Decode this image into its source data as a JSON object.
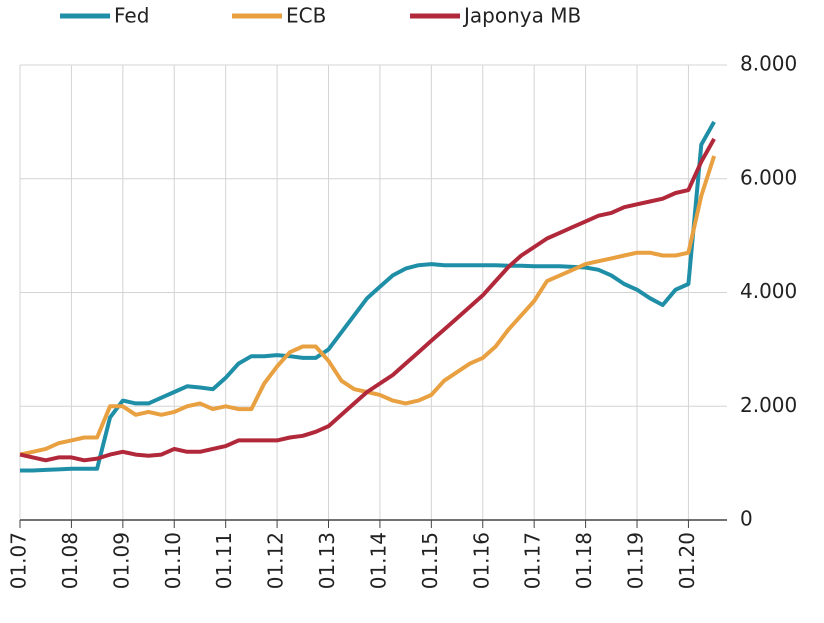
{
  "chart_data": {
    "type": "line",
    "x": [
      "2007-01",
      "2007-04",
      "2007-07",
      "2007-10",
      "2008-01",
      "2008-04",
      "2008-07",
      "2008-10",
      "2009-01",
      "2009-04",
      "2009-07",
      "2009-10",
      "2010-01",
      "2010-04",
      "2010-07",
      "2010-10",
      "2011-01",
      "2011-04",
      "2011-07",
      "2011-10",
      "2012-01",
      "2012-04",
      "2012-07",
      "2012-10",
      "2013-01",
      "2013-04",
      "2013-07",
      "2013-10",
      "2014-01",
      "2014-04",
      "2014-07",
      "2014-10",
      "2015-01",
      "2015-04",
      "2015-07",
      "2015-10",
      "2016-01",
      "2016-04",
      "2016-07",
      "2016-10",
      "2017-01",
      "2017-04",
      "2017-07",
      "2017-10",
      "2018-01",
      "2018-04",
      "2018-07",
      "2018-10",
      "2019-01",
      "2019-04",
      "2019-07",
      "2019-10",
      "2020-01",
      "2020-04",
      "2020-07"
    ],
    "series": [
      {
        "name": "Fed",
        "color": "#1f8fa8",
        "values": [
          870,
          870,
          880,
          890,
          900,
          900,
          900,
          1800,
          2100,
          2050,
          2050,
          2150,
          2250,
          2350,
          2330,
          2300,
          2500,
          2750,
          2880,
          2880,
          2900,
          2880,
          2850,
          2850,
          3000,
          3300,
          3600,
          3900,
          4100,
          4300,
          4420,
          4480,
          4500,
          4480,
          4480,
          4480,
          4480,
          4480,
          4470,
          4470,
          4460,
          4460,
          4460,
          4450,
          4440,
          4400,
          4300,
          4150,
          4050,
          3900,
          3780,
          4050,
          4150,
          6600,
          7000
        ]
      },
      {
        "name": "ECB",
        "color": "#e8a040",
        "values": [
          1150,
          1200,
          1250,
          1350,
          1400,
          1450,
          1450,
          2000,
          2000,
          1850,
          1900,
          1850,
          1900,
          2000,
          2050,
          1950,
          2000,
          1950,
          1950,
          2400,
          2700,
          2950,
          3050,
          3050,
          2800,
          2450,
          2300,
          2250,
          2200,
          2100,
          2050,
          2100,
          2200,
          2450,
          2600,
          2750,
          2850,
          3050,
          3350,
          3600,
          3850,
          4200,
          4300,
          4400,
          4500,
          4550,
          4600,
          4650,
          4700,
          4700,
          4650,
          4650,
          4700,
          5700,
          6400
        ]
      },
      {
        "name": "Japonya MB",
        "color": "#b0283a",
        "values": [
          1150,
          1100,
          1050,
          1100,
          1100,
          1050,
          1080,
          1150,
          1200,
          1150,
          1130,
          1150,
          1250,
          1200,
          1200,
          1250,
          1300,
          1400,
          1400,
          1400,
          1400,
          1450,
          1480,
          1550,
          1650,
          1850,
          2050,
          2250,
          2400,
          2550,
          2750,
          2950,
          3150,
          3350,
          3550,
          3750,
          3950,
          4200,
          4450,
          4650,
          4800,
          4950,
          5050,
          5150,
          5250,
          5350,
          5400,
          5500,
          5550,
          5600,
          5650,
          5750,
          5800,
          6300,
          6700
        ]
      }
    ],
    "xlim": [
      "2007-01",
      "2020-10"
    ],
    "xticks": [
      {
        "value": "2007-01",
        "label": "01.07"
      },
      {
        "value": "2008-01",
        "label": "01.08"
      },
      {
        "value": "2009-01",
        "label": "01.09"
      },
      {
        "value": "2010-01",
        "label": "01.10"
      },
      {
        "value": "2011-01",
        "label": "01.11"
      },
      {
        "value": "2012-01",
        "label": "01.12"
      },
      {
        "value": "2013-01",
        "label": "01.13"
      },
      {
        "value": "2014-01",
        "label": "01.14"
      },
      {
        "value": "2015-01",
        "label": "01.15"
      },
      {
        "value": "2016-01",
        "label": "01.16"
      },
      {
        "value": "2017-01",
        "label": "01.17"
      },
      {
        "value": "2018-01",
        "label": "01.18"
      },
      {
        "value": "2019-01",
        "label": "01.19"
      },
      {
        "value": "2020-01",
        "label": "01.20"
      }
    ],
    "ylim": [
      0,
      8000
    ],
    "yticks": [
      0,
      {
        "value": 2000,
        "label": "2.000"
      },
      {
        "value": 4000,
        "label": "4.000"
      },
      {
        "value": 6000,
        "label": "6.000"
      },
      {
        "value": 8000,
        "label": "8.000"
      }
    ],
    "grid": true
  }
}
